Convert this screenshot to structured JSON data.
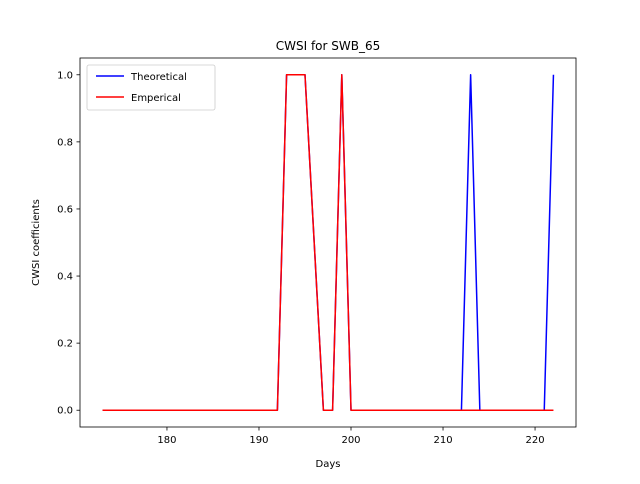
{
  "chart_data": {
    "type": "line",
    "title": "CWSI for SWB_65",
    "xlabel": "Days",
    "ylabel": "CWSI coefficients",
    "xlim": [
      170.55,
      224.45
    ],
    "ylim": [
      -0.05,
      1.05
    ],
    "xticks": [
      180,
      190,
      200,
      210,
      220
    ],
    "xtick_labels": [
      "180",
      "190",
      "200",
      "210",
      "220"
    ],
    "yticks": [
      0.0,
      0.2,
      0.4,
      0.6,
      0.8,
      1.0
    ],
    "ytick_labels": [
      "0.0",
      "0.2",
      "0.4",
      "0.6",
      "0.8",
      "1.0"
    ],
    "grid": false,
    "legend_position": "top-left",
    "series": [
      {
        "name": "Theoretical",
        "color": "#0000ff",
        "x": [
          173,
          192,
          193,
          195,
          197,
          198,
          199,
          200,
          212,
          213,
          214,
          221,
          222
        ],
        "y": [
          0,
          0,
          1,
          1,
          0,
          0,
          1,
          0,
          0,
          1,
          0,
          0,
          1
        ]
      },
      {
        "name": "Emperical",
        "color": "#ff0000",
        "x": [
          173,
          192,
          193,
          195,
          197,
          198,
          199,
          200,
          222
        ],
        "y": [
          0,
          0,
          1,
          1,
          0,
          0,
          1,
          0,
          0
        ]
      }
    ]
  }
}
